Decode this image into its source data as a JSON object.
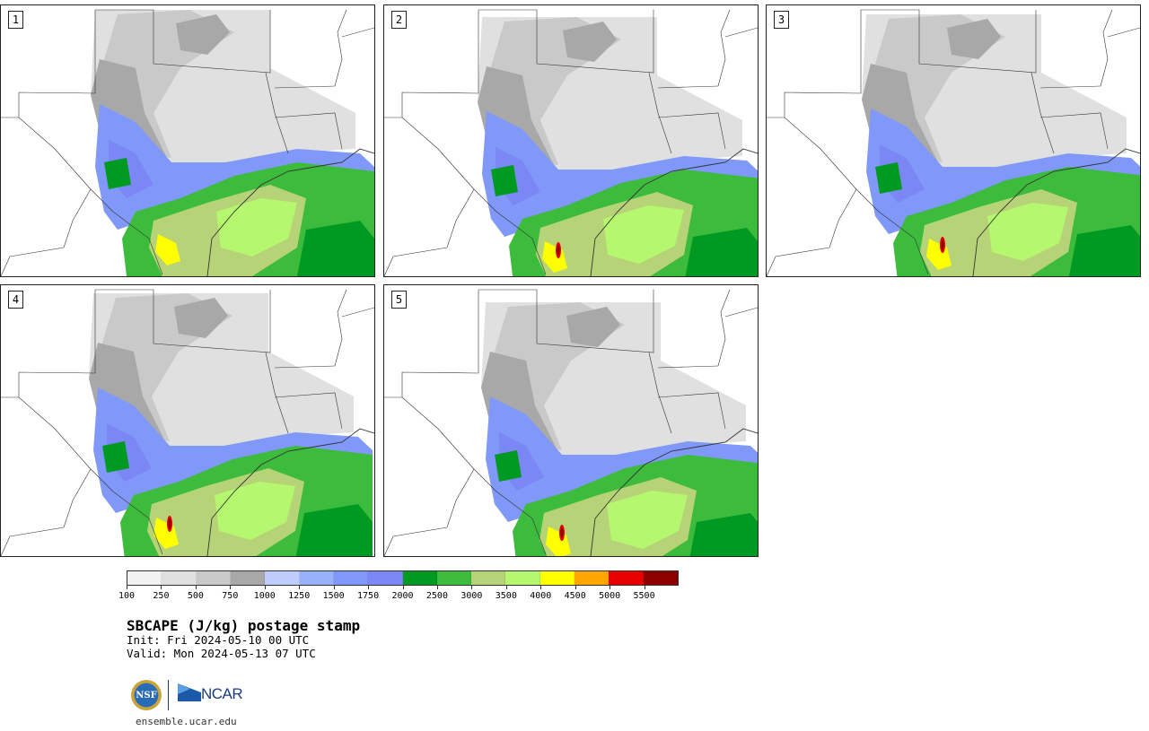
{
  "panels": [
    {
      "label": "1"
    },
    {
      "label": "2"
    },
    {
      "label": "3"
    },
    {
      "label": "4"
    },
    {
      "label": "5"
    }
  ],
  "colorbar": {
    "colors": [
      "#f2f2f2",
      "#e0e0e0",
      "#c9c9c9",
      "#a8a8a8",
      "#bfcdfc",
      "#99b1fb",
      "#8098f8",
      "#7a87f4",
      "#009a23",
      "#3dbb3d",
      "#b6d477",
      "#b5f76e",
      "#ffff00",
      "#ffa600",
      "#e60000",
      "#8c0000"
    ],
    "tick_labels": [
      "100",
      "250",
      "500",
      "750",
      "1000",
      "1250",
      "1500",
      "1750",
      "2000",
      "2500",
      "3000",
      "3500",
      "4000",
      "4500",
      "5000",
      "5500"
    ]
  },
  "title": "SBCAPE (J/kg) postage stamp",
  "init": "Init: Fri 2024-05-10 00 UTC",
  "valid": "Valid: Mon 2024-05-13 07 UTC",
  "logo": {
    "seal_text": "NSF",
    "org_text": "NCAR",
    "brand_color": "#1a3d7c"
  },
  "footer_url": "ensemble.ucar.edu"
}
